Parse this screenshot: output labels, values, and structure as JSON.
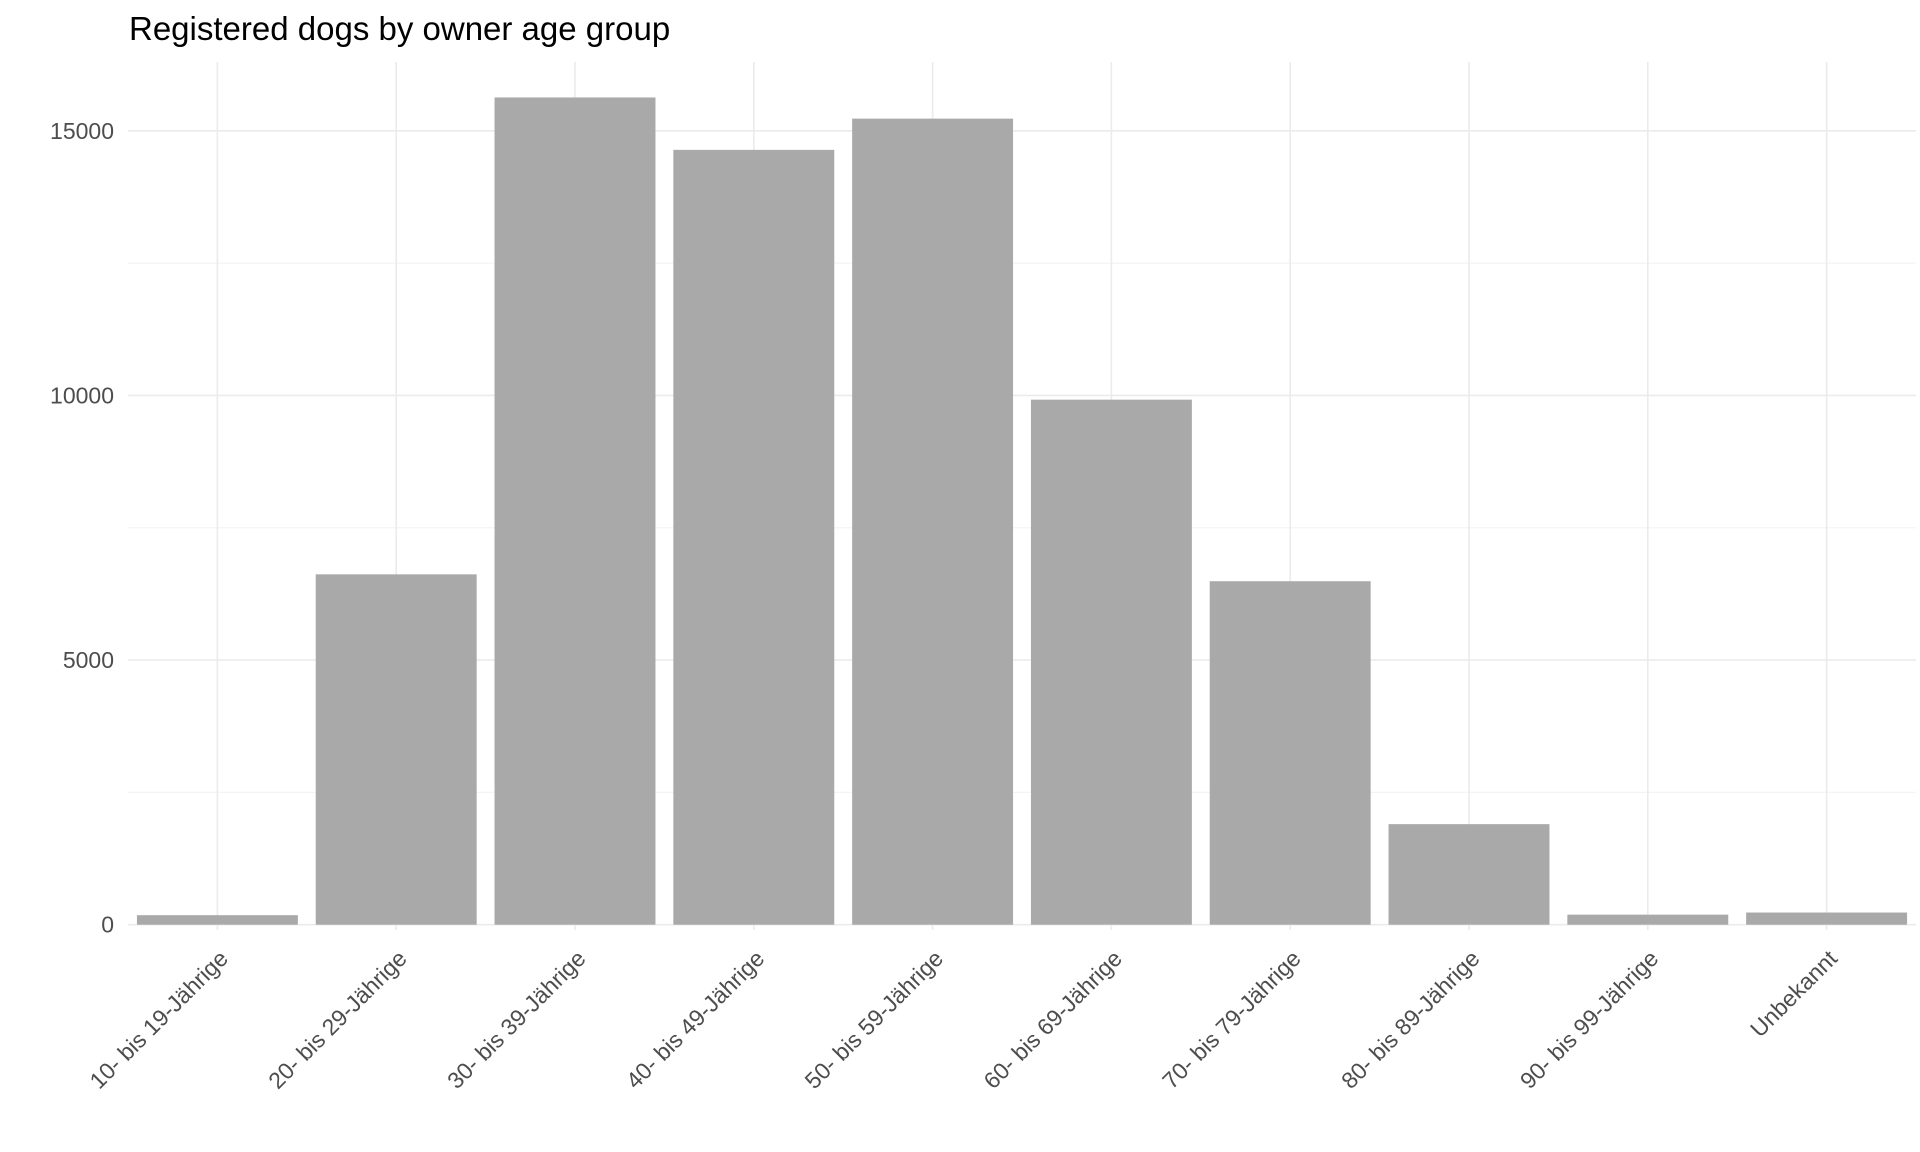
{
  "colors": {
    "background": "#ffffff",
    "bar_fill": "#a9a9a9",
    "grid_major": "#ebebeb",
    "grid_minor": "#f4f4f4",
    "title_text": "#000000",
    "tick_text": "#4d4d4d"
  },
  "chart_data": {
    "type": "bar",
    "title": "Registered dogs by owner age group",
    "xlabel": "",
    "ylabel": "",
    "categories": [
      "10- bis 19-Jährige",
      "20- bis 29-Jährige",
      "30- bis 39-Jährige",
      "40- bis 49-Jährige",
      "50- bis 59-Jährige",
      "60- bis 69-Jährige",
      "70- bis 79-Jährige",
      "80- bis 89-Jährige",
      "90- bis 99-Jährige",
      "Unbekannt"
    ],
    "values": [
      180,
      6620,
      15630,
      14640,
      15230,
      9920,
      6490,
      1900,
      190,
      230
    ],
    "ylim": [
      -100,
      16300
    ],
    "y_ticks": [
      0,
      5000,
      10000,
      15000
    ],
    "y_minor_ticks": [
      2500,
      7500,
      12500
    ],
    "x_tick_rotation": 45,
    "grid": true,
    "legend": "none"
  }
}
